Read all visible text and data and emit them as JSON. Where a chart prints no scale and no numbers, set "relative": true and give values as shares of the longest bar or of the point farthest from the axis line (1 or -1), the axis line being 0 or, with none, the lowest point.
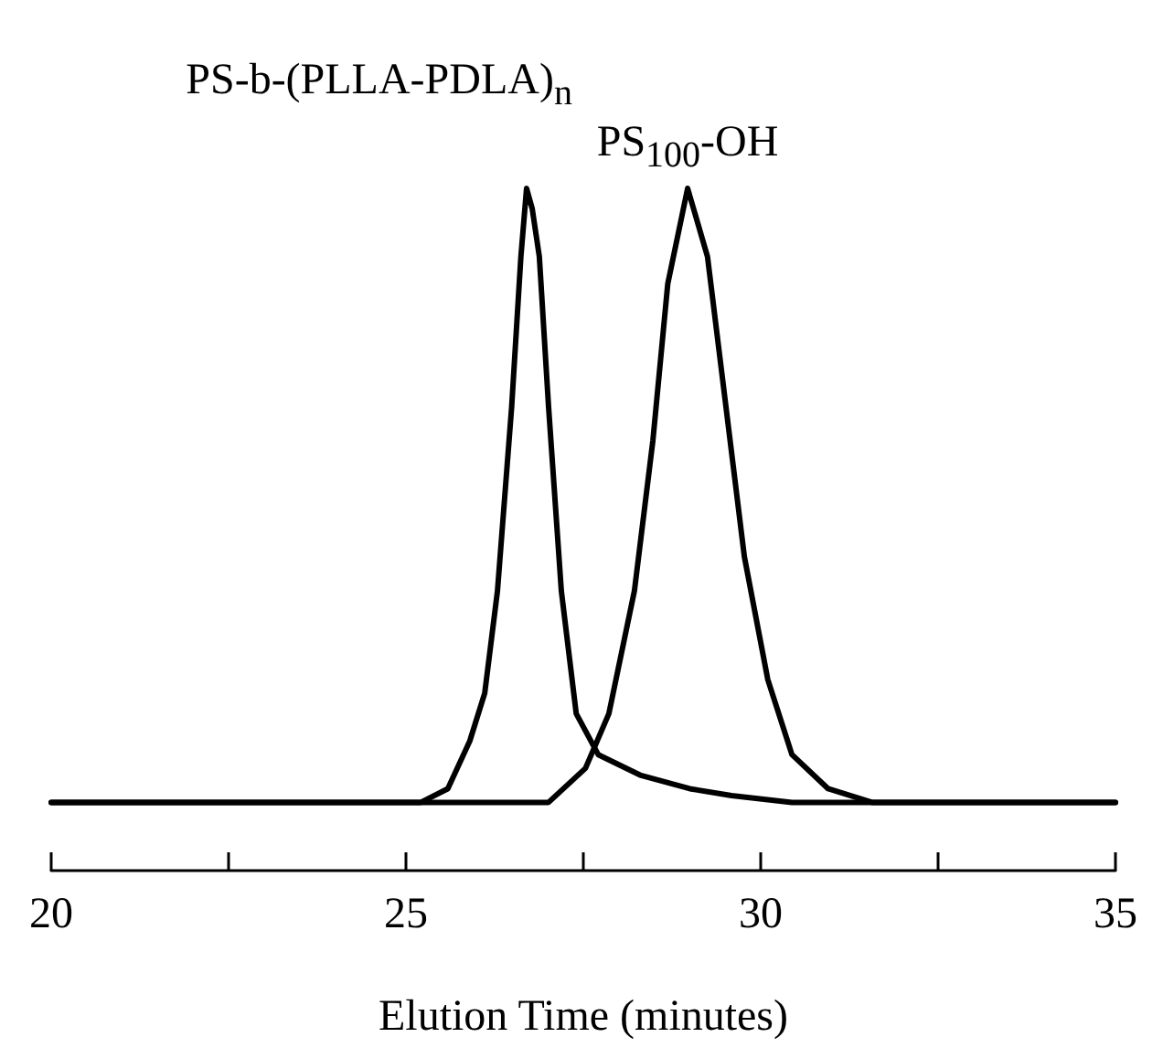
{
  "chart_data": {
    "type": "line",
    "relative": true,
    "xlabel": "Elution Time (minutes)",
    "xlim": [
      20,
      35
    ],
    "xticks": [
      20,
      {
        "value": 22.5,
        "label": null
      },
      25,
      {
        "value": 27.5,
        "label": null
      },
      30,
      {
        "value": 32.5,
        "label": null
      },
      35
    ],
    "marker": "none",
    "line_style": "solid",
    "grid": false,
    "legend": false,
    "series": [
      {
        "name": "PS-b-(PLLA-PDLA)$_{n}$",
        "color": "#000000",
        "x": [
          20,
          25.21,
          25.59,
          25.9,
          26.11,
          26.29,
          26.49,
          26.62,
          26.7,
          26.78,
          26.88,
          27.01,
          27.19,
          27.4,
          27.71,
          28.3,
          29.0,
          29.59,
          30.44,
          35
        ],
        "values": [
          0.1,
          0.1,
          0.12,
          0.19,
          0.26,
          0.41,
          0.68,
          0.9,
          1,
          0.97,
          0.9,
          0.68,
          0.41,
          0.23,
          0.17,
          0.14,
          0.12,
          0.11,
          0.1,
          0.1
        ]
      },
      {
        "name": "PS$_{100}$-OH",
        "color": "#000000",
        "x": [
          20,
          27.01,
          27.53,
          27.86,
          28.22,
          28.48,
          28.69,
          28.97,
          29.25,
          29.51,
          29.77,
          30.1,
          30.44,
          30.95,
          31.57,
          35
        ],
        "values": [
          0.1,
          0.1,
          0.15,
          0.23,
          0.41,
          0.63,
          0.86,
          1,
          0.9,
          0.68,
          0.46,
          0.28,
          0.17,
          0.12,
          0.1,
          0.1
        ]
      }
    ]
  }
}
